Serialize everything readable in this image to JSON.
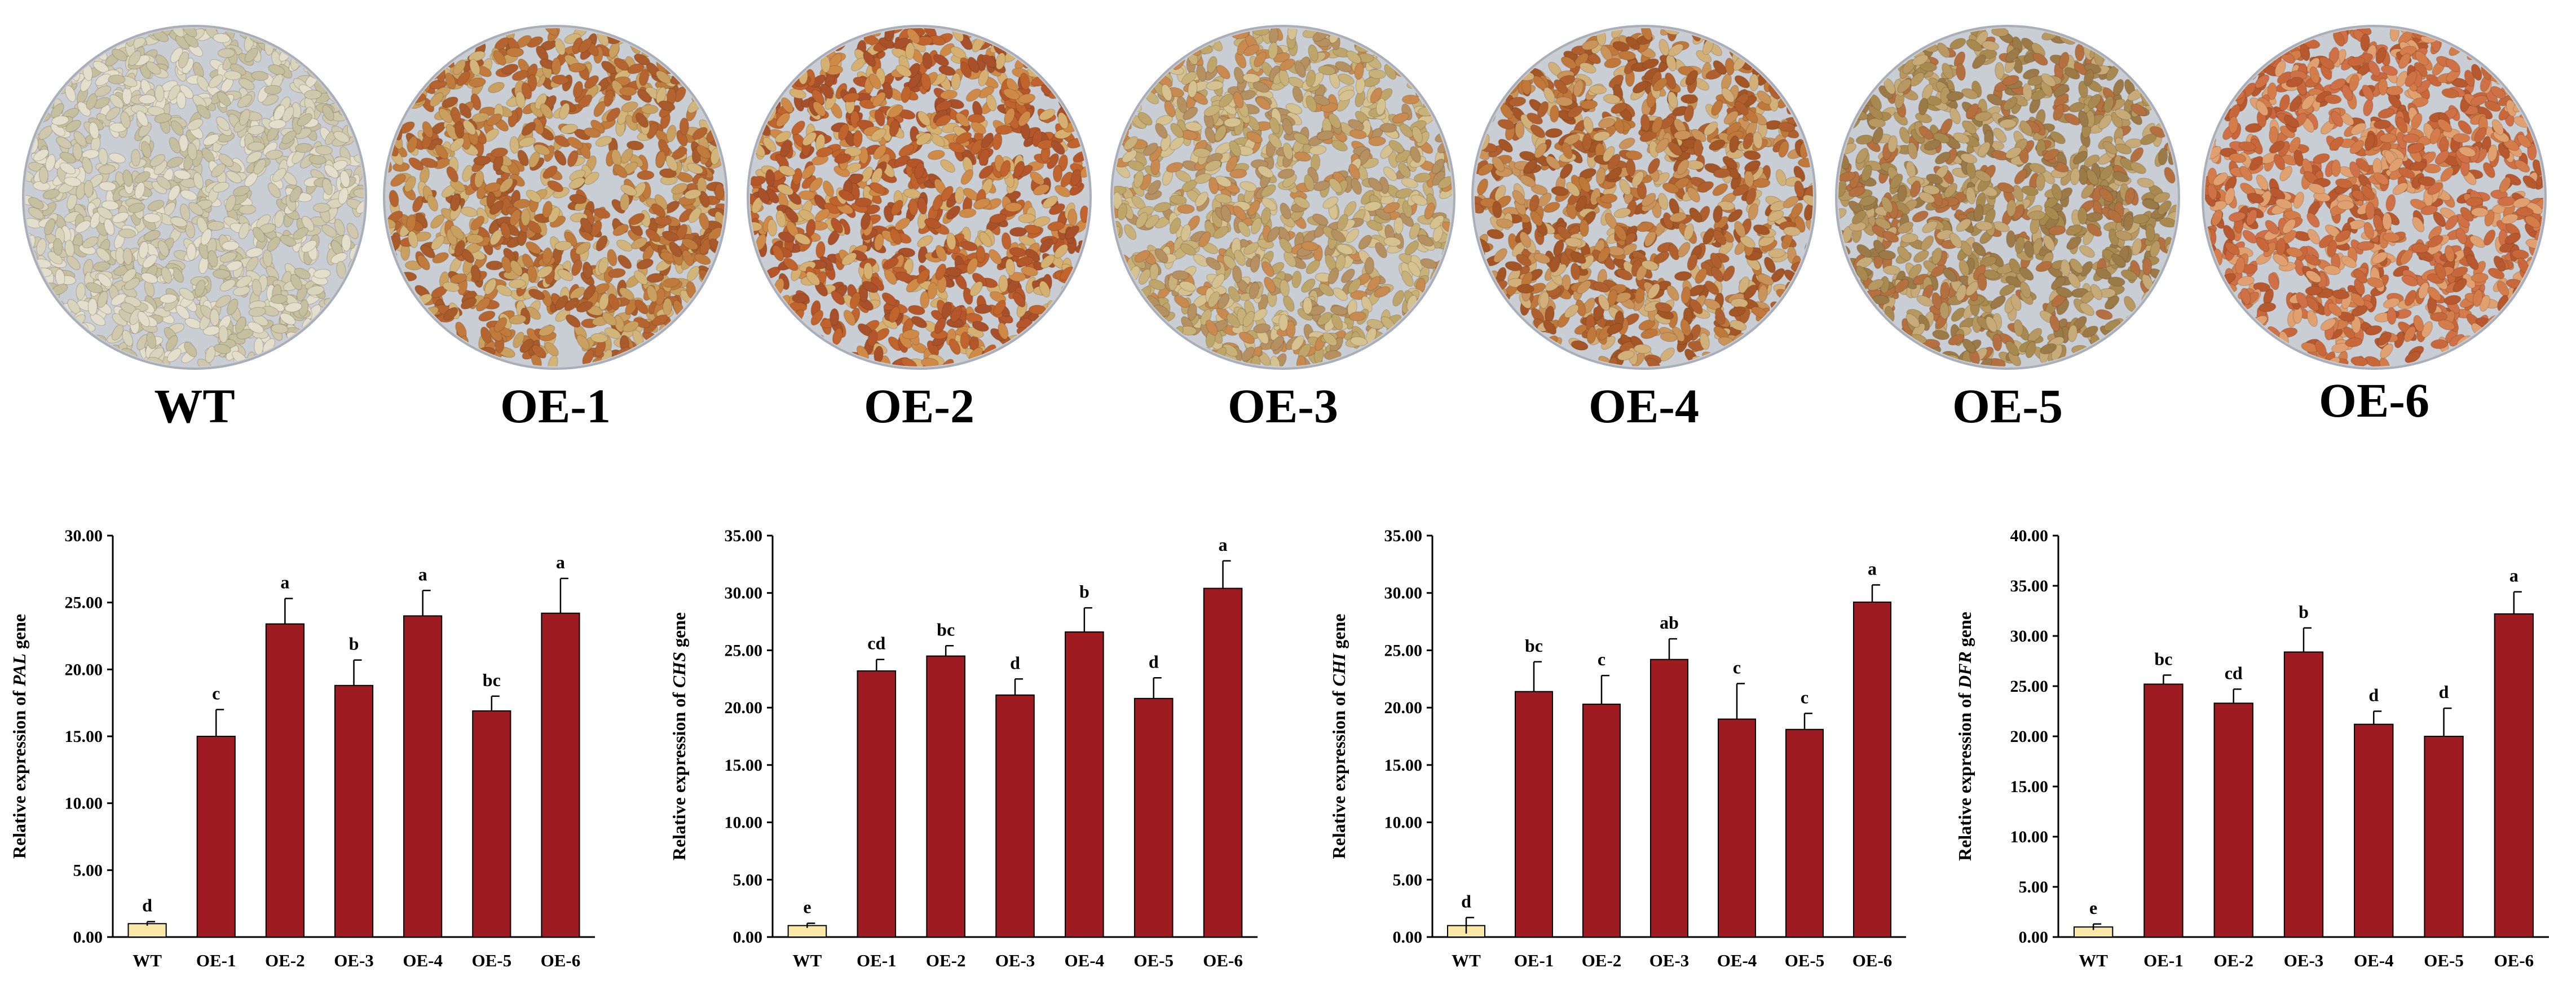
{
  "colors": {
    "wt_bar": "#fae9a6",
    "oe_bar": "#9e1c21",
    "dish_bg": "#c9cdd4"
  },
  "seed_panels": [
    {
      "label": "WT",
      "tone": "pale-tan",
      "colors": [
        "#d9d4bc",
        "#cfc8ac",
        "#e3dfcc",
        "#c6bf9f"
      ]
    },
    {
      "label": "OE-1",
      "tone": "brown",
      "colors": [
        "#b5642f",
        "#c07a3c",
        "#a85a2a",
        "#caa060",
        "#d2b57a"
      ]
    },
    {
      "label": "OE-2",
      "tone": "red-brown",
      "colors": [
        "#c0632c",
        "#b4562a",
        "#d08a48",
        "#a8502a",
        "#d5b070"
      ]
    },
    {
      "label": "OE-3",
      "tone": "tan-green",
      "colors": [
        "#c9b27a",
        "#bea56a",
        "#d5c290",
        "#b59060",
        "#c98a50"
      ]
    },
    {
      "label": "OE-4",
      "tone": "brown",
      "colors": [
        "#b0602e",
        "#c0783a",
        "#a45526",
        "#c9935a",
        "#d2b07a"
      ]
    },
    {
      "label": "OE-5",
      "tone": "olive-brown",
      "colors": [
        "#a88a50",
        "#b79860",
        "#9c7a48",
        "#c6ab78",
        "#b57040"
      ]
    },
    {
      "label": "OE-6",
      "tone": "red-orange",
      "colors": [
        "#c8683a",
        "#d47c4a",
        "#b8582e",
        "#e0a070",
        "#cf7046"
      ]
    }
  ],
  "chart_data": [
    {
      "type": "bar",
      "ylabel_prefix": "Relative expression of ",
      "gene": "PAL",
      "ylabel_suffix": " gene",
      "categories": [
        "WT",
        "OE-1",
        "OE-2",
        "OE-3",
        "OE-4",
        "OE-5",
        "OE-6"
      ],
      "values": [
        1.0,
        15.0,
        23.4,
        18.8,
        24.0,
        16.9,
        24.2
      ],
      "errors": [
        0.15,
        2.0,
        1.9,
        1.9,
        1.9,
        1.1,
        2.6
      ],
      "letters": [
        "d",
        "c",
        "a",
        "b",
        "a",
        "bc",
        "a"
      ],
      "ylim": [
        0,
        30
      ],
      "yticks": [
        "0.00",
        "5.00",
        "10.00",
        "15.00",
        "20.00",
        "25.00",
        "30.00"
      ]
    },
    {
      "type": "bar",
      "ylabel_prefix": "Relative expression of ",
      "gene": "CHS",
      "ylabel_suffix": " gene",
      "categories": [
        "WT",
        "OE-1",
        "OE-2",
        "OE-3",
        "OE-4",
        "OE-5",
        "OE-6"
      ],
      "values": [
        1.0,
        23.2,
        24.5,
        21.1,
        26.6,
        20.8,
        30.4
      ],
      "errors": [
        0.2,
        1.0,
        0.9,
        1.4,
        2.1,
        1.8,
        2.4
      ],
      "letters": [
        "e",
        "cd",
        "bc",
        "d",
        "b",
        "d",
        "a"
      ],
      "ylim": [
        0,
        35
      ],
      "yticks": [
        "0.00",
        "5.00",
        "10.00",
        "15.00",
        "20.00",
        "25.00",
        "30.00",
        "35.00"
      ]
    },
    {
      "type": "bar",
      "ylabel_prefix": "Relative expression of ",
      "gene": "CHI",
      "ylabel_suffix": " gene",
      "categories": [
        "WT",
        "OE-1",
        "OE-2",
        "OE-3",
        "OE-4",
        "OE-5",
        "OE-6"
      ],
      "values": [
        1.0,
        21.4,
        20.3,
        24.2,
        19.0,
        18.1,
        29.2
      ],
      "errors": [
        0.7,
        2.6,
        2.5,
        1.8,
        3.1,
        1.4,
        1.5
      ],
      "letters": [
        "d",
        "bc",
        "c",
        "ab",
        "c",
        "c",
        "a"
      ],
      "ylim": [
        0,
        35
      ],
      "yticks": [
        "0.00",
        "5.00",
        "10.00",
        "15.00",
        "20.00",
        "25.00",
        "30.00",
        "35.00"
      ]
    },
    {
      "type": "bar",
      "ylabel_prefix": "Relative expression of ",
      "gene": "DFR",
      "ylabel_suffix": " gene",
      "categories": [
        "WT",
        "OE-1",
        "OE-2",
        "OE-3",
        "OE-4",
        "OE-5",
        "OE-6"
      ],
      "values": [
        1.0,
        25.2,
        23.3,
        28.4,
        21.2,
        20.0,
        32.2
      ],
      "errors": [
        0.3,
        0.9,
        1.4,
        2.4,
        1.3,
        2.8,
        2.2
      ],
      "letters": [
        "e",
        "bc",
        "cd",
        "b",
        "d",
        "d",
        "a"
      ],
      "ylim": [
        0,
        40
      ],
      "yticks": [
        "0.00",
        "5.00",
        "10.00",
        "15.00",
        "20.00",
        "25.00",
        "30.00",
        "35.00",
        "40.00"
      ]
    }
  ]
}
